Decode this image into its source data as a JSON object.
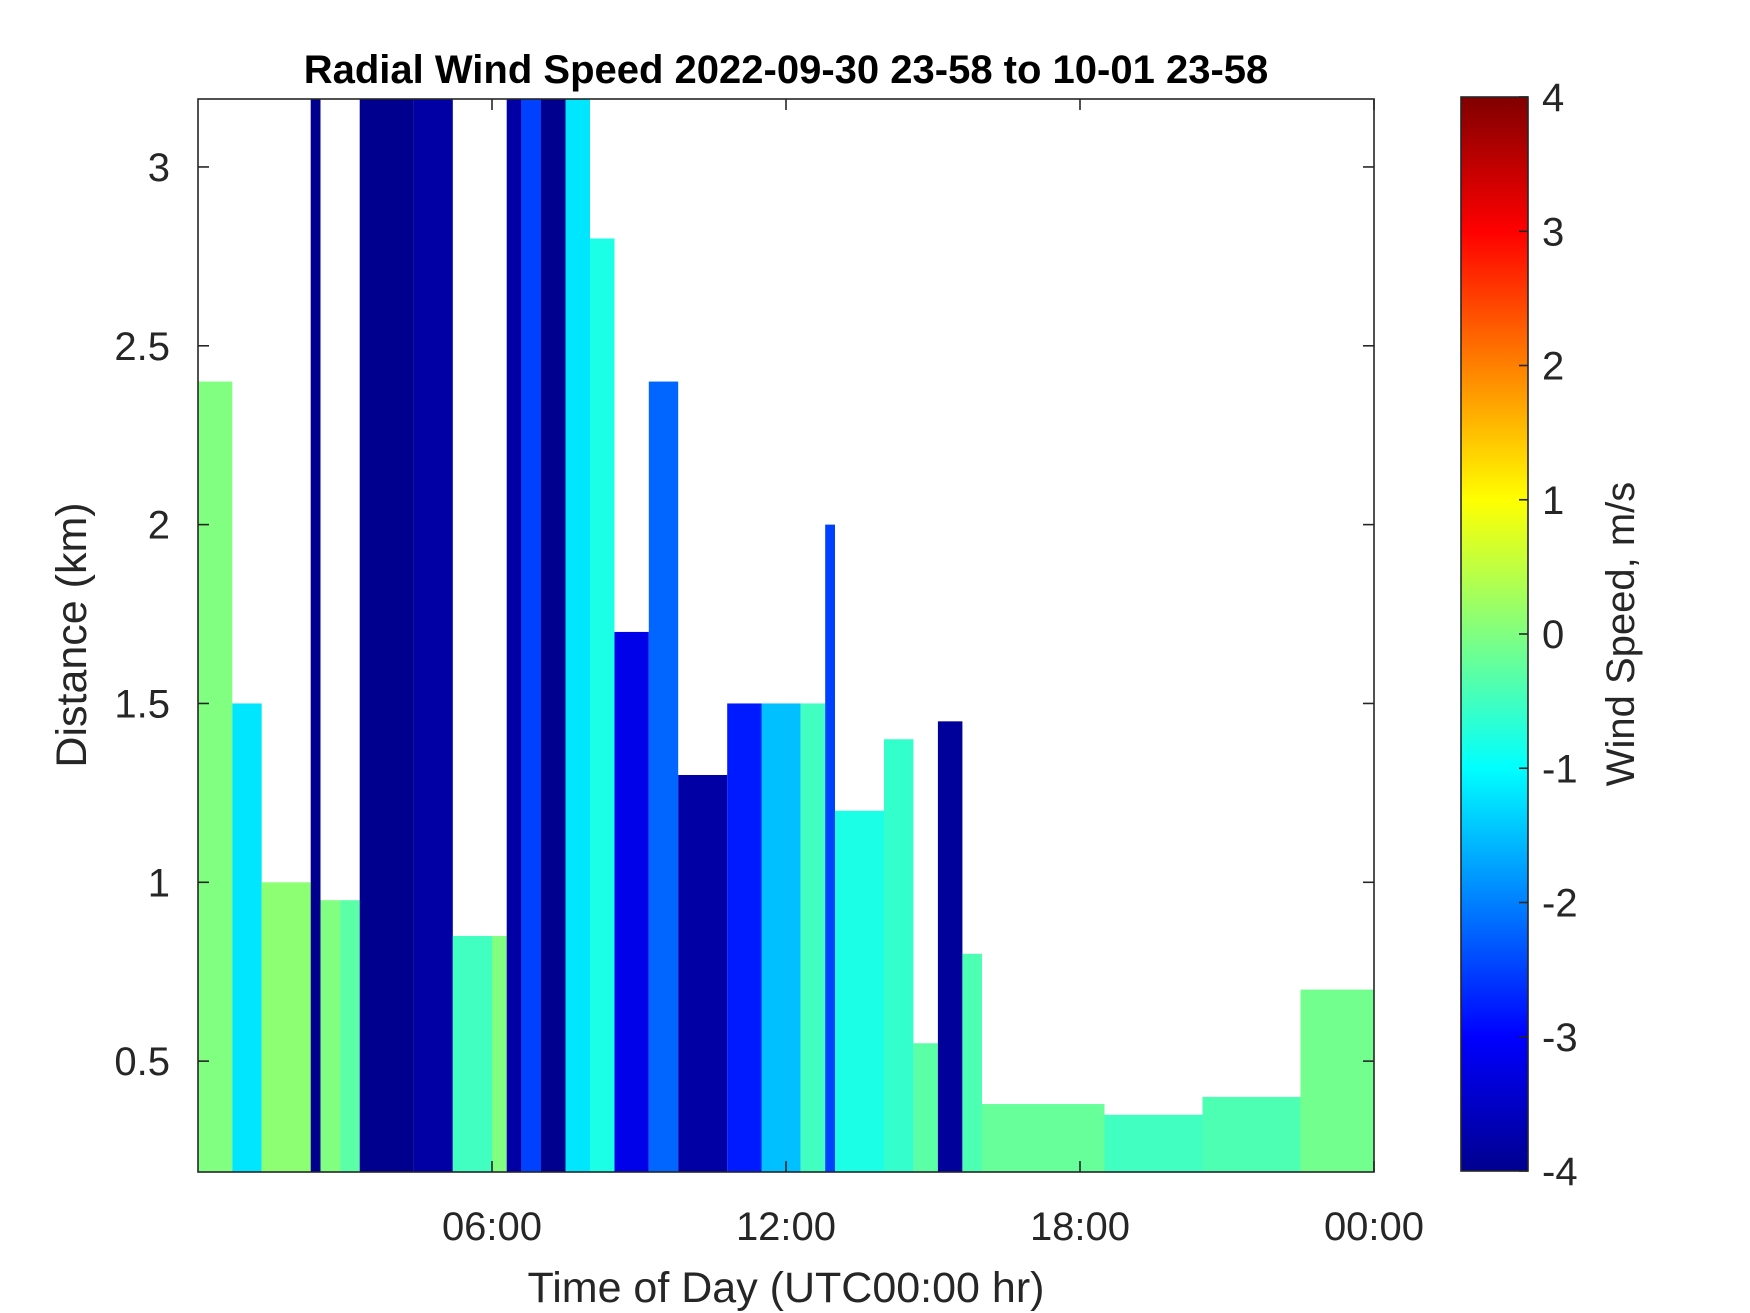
{
  "chart_data": {
    "type": "heatmap",
    "title": "Radial Wind Speed 2022-09-30 23-58 to 10-01 23-58",
    "xlabel": "Time of Day (UTC00:00 hr)",
    "ylabel": "Distance (km)",
    "colorbar_label": "Wind Speed, m/s",
    "colormap": "jet",
    "colormap_stops": [
      "#00008f",
      "#0000ff",
      "#0080ff",
      "#00ffff",
      "#80ff80",
      "#ffff00",
      "#ff8000",
      "#ff0000",
      "#800000"
    ],
    "xlim_hours": [
      0,
      24
    ],
    "x_ticks": [
      {
        "value": 6,
        "label": "06:00"
      },
      {
        "value": 12,
        "label": "12:00"
      },
      {
        "value": 18,
        "label": "18:00"
      },
      {
        "value": 24,
        "label": "00:00"
      }
    ],
    "ylim_km": [
      0.19,
      3.19
    ],
    "y_ticks": [
      {
        "value": 0.5,
        "label": "0.5"
      },
      {
        "value": 1,
        "label": "1"
      },
      {
        "value": 1.5,
        "label": "1.5"
      },
      {
        "value": 2,
        "label": "2"
      },
      {
        "value": 2.5,
        "label": "2.5"
      },
      {
        "value": 3,
        "label": "3"
      }
    ],
    "clim": [
      -4,
      4
    ],
    "c_ticks": [
      {
        "value": -4,
        "label": "-4"
      },
      {
        "value": -3,
        "label": "-3"
      },
      {
        "value": -2,
        "label": "-2"
      },
      {
        "value": -1,
        "label": "-1"
      },
      {
        "value": 0,
        "label": "0"
      },
      {
        "value": 1,
        "label": "1"
      },
      {
        "value": 2,
        "label": "2"
      },
      {
        "value": 3,
        "label": "3"
      },
      {
        "value": 4,
        "label": "4"
      }
    ],
    "profiles": [
      {
        "t0": 0.0,
        "t1": 0.7,
        "top_km": 2.4,
        "speed": 0.0
      },
      {
        "t0": 0.7,
        "t1": 1.3,
        "top_km": 1.5,
        "speed": -1.2
      },
      {
        "t0": 1.3,
        "t1": 2.3,
        "top_km": 1.0,
        "speed": 0.1
      },
      {
        "t0": 2.3,
        "t1": 2.5,
        "top_km": 3.19,
        "speed": -4.0
      },
      {
        "t0": 2.5,
        "t1": 2.9,
        "top_km": 0.95,
        "speed": 0.0
      },
      {
        "t0": 2.9,
        "t1": 3.3,
        "top_km": 0.95,
        "speed": -0.3
      },
      {
        "t0": 3.3,
        "t1": 4.4,
        "top_km": 3.19,
        "speed": -4.0
      },
      {
        "t0": 4.4,
        "t1": 5.2,
        "top_km": 3.19,
        "speed": -3.8
      },
      {
        "t0": 5.2,
        "t1": 6.0,
        "top_km": 0.85,
        "speed": -0.5
      },
      {
        "t0": 6.0,
        "t1": 6.3,
        "top_km": 0.85,
        "speed": 0.0
      },
      {
        "t0": 6.3,
        "t1": 6.6,
        "top_km": 3.19,
        "speed": -3.8
      },
      {
        "t0": 6.6,
        "t1": 7.0,
        "top_km": 3.19,
        "speed": -2.5
      },
      {
        "t0": 7.0,
        "t1": 7.5,
        "top_km": 3.19,
        "speed": -4.0
      },
      {
        "t0": 7.5,
        "t1": 8.0,
        "top_km": 3.19,
        "speed": -1.2
      },
      {
        "t0": 8.0,
        "t1": 8.5,
        "top_km": 2.8,
        "speed": -0.8
      },
      {
        "t0": 8.5,
        "t1": 9.2,
        "top_km": 1.7,
        "speed": -3.2
      },
      {
        "t0": 9.2,
        "t1": 9.8,
        "top_km": 2.4,
        "speed": -2.2
      },
      {
        "t0": 9.8,
        "t1": 10.8,
        "top_km": 1.3,
        "speed": -3.8
      },
      {
        "t0": 10.8,
        "t1": 11.5,
        "top_km": 1.5,
        "speed": -2.8
      },
      {
        "t0": 11.5,
        "t1": 12.3,
        "top_km": 1.5,
        "speed": -1.5
      },
      {
        "t0": 12.3,
        "t1": 12.8,
        "top_km": 1.5,
        "speed": -0.5
      },
      {
        "t0": 12.8,
        "t1": 13.0,
        "top_km": 2.0,
        "speed": -2.5
      },
      {
        "t0": 13.0,
        "t1": 14.0,
        "top_km": 1.2,
        "speed": -0.8
      },
      {
        "t0": 14.0,
        "t1": 14.6,
        "top_km": 1.4,
        "speed": -0.6
      },
      {
        "t0": 14.6,
        "t1": 15.1,
        "top_km": 0.55,
        "speed": -0.3
      },
      {
        "t0": 15.1,
        "t1": 15.6,
        "top_km": 1.45,
        "speed": -3.9
      },
      {
        "t0": 15.6,
        "t1": 16.0,
        "top_km": 0.8,
        "speed": -0.4
      },
      {
        "t0": 16.0,
        "t1": 18.5,
        "top_km": 0.38,
        "speed": -0.2
      },
      {
        "t0": 18.5,
        "t1": 20.5,
        "top_km": 0.35,
        "speed": -0.5
      },
      {
        "t0": 20.5,
        "t1": 22.5,
        "top_km": 0.4,
        "speed": -0.4
      },
      {
        "t0": 22.5,
        "t1": 24.0,
        "top_km": 0.7,
        "speed": -0.1
      }
    ]
  }
}
